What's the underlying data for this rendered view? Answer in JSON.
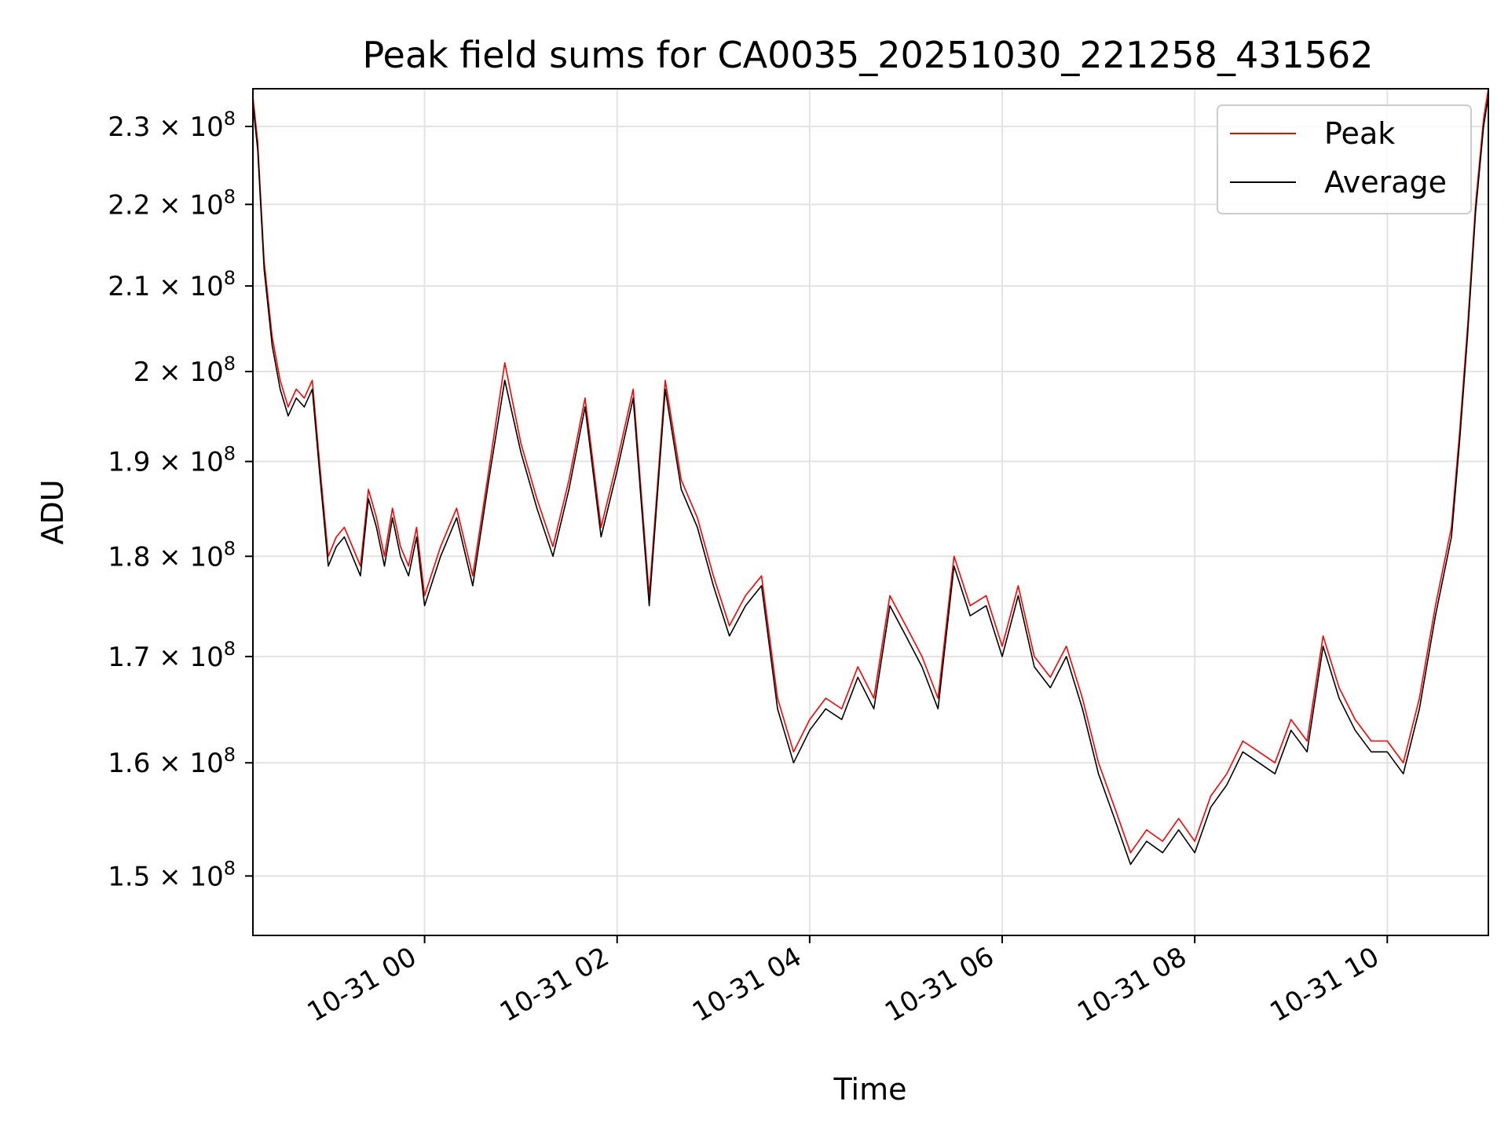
{
  "chart_data": {
    "type": "line",
    "title": "Peak field sums for CA0035_20251030_221258_431562",
    "xlabel": "Time",
    "ylabel": "ADU",
    "yscale": "log",
    "xlim": [
      "2025-10-30 22:13",
      "2025-10-31 11:03"
    ],
    "ylim": [
      145000000,
      235000000
    ],
    "grid": true,
    "legend_placement": "top-right",
    "x_ticks": [
      {
        "value": "2025-10-31 00:00",
        "label": "10-31 00"
      },
      {
        "value": "2025-10-31 02:00",
        "label": "10-31 02"
      },
      {
        "value": "2025-10-31 04:00",
        "label": "10-31 04"
      },
      {
        "value": "2025-10-31 06:00",
        "label": "10-31 06"
      },
      {
        "value": "2025-10-31 08:00",
        "label": "10-31 08"
      },
      {
        "value": "2025-10-31 10:00",
        "label": "10-31 10"
      }
    ],
    "y_ticks": [
      {
        "value": 150000000,
        "mantissa": "1.5",
        "exponent": "8"
      },
      {
        "value": 160000000,
        "mantissa": "1.6",
        "exponent": "8"
      },
      {
        "value": 170000000,
        "mantissa": "1.7",
        "exponent": "8"
      },
      {
        "value": 180000000,
        "mantissa": "1.8",
        "exponent": "8"
      },
      {
        "value": 190000000,
        "mantissa": "1.9",
        "exponent": "8"
      },
      {
        "value": 200000000,
        "mantissa": "2",
        "exponent": "8"
      },
      {
        "value": 210000000,
        "mantissa": "2.1",
        "exponent": "8"
      },
      {
        "value": 220000000,
        "mantissa": "2.2",
        "exponent": "8"
      },
      {
        "value": 230000000,
        "mantissa": "2.3",
        "exponent": "8"
      }
    ],
    "tick_times_symbol": "×",
    "tick_base": "10",
    "series": [
      {
        "name": "Peak",
        "color": "#ff0000"
      },
      {
        "name": "Average",
        "color": "#000000"
      }
    ],
    "x": [
      "2025-10-30 22:13",
      "2025-10-30 22:16",
      "2025-10-30 22:20",
      "2025-10-30 22:25",
      "2025-10-30 22:30",
      "2025-10-30 22:35",
      "2025-10-30 22:40",
      "2025-10-30 22:45",
      "2025-10-30 22:50",
      "2025-10-30 22:55",
      "2025-10-30 23:00",
      "2025-10-30 23:05",
      "2025-10-30 23:10",
      "2025-10-30 23:15",
      "2025-10-30 23:20",
      "2025-10-30 23:25",
      "2025-10-30 23:30",
      "2025-10-30 23:35",
      "2025-10-30 23:40",
      "2025-10-30 23:45",
      "2025-10-30 23:50",
      "2025-10-30 23:55",
      "2025-10-31 00:00",
      "2025-10-31 00:10",
      "2025-10-31 00:20",
      "2025-10-31 00:30",
      "2025-10-31 00:40",
      "2025-10-31 00:50",
      "2025-10-31 01:00",
      "2025-10-31 01:10",
      "2025-10-31 01:20",
      "2025-10-31 01:30",
      "2025-10-31 01:40",
      "2025-10-31 01:50",
      "2025-10-31 02:00",
      "2025-10-31 02:10",
      "2025-10-31 02:20",
      "2025-10-31 02:30",
      "2025-10-31 02:40",
      "2025-10-31 02:50",
      "2025-10-31 03:00",
      "2025-10-31 03:10",
      "2025-10-31 03:20",
      "2025-10-31 03:30",
      "2025-10-31 03:40",
      "2025-10-31 03:50",
      "2025-10-31 04:00",
      "2025-10-31 04:10",
      "2025-10-31 04:20",
      "2025-10-31 04:30",
      "2025-10-31 04:40",
      "2025-10-31 04:50",
      "2025-10-31 05:00",
      "2025-10-31 05:10",
      "2025-10-31 05:20",
      "2025-10-31 05:30",
      "2025-10-31 05:40",
      "2025-10-31 05:50",
      "2025-10-31 06:00",
      "2025-10-31 06:10",
      "2025-10-31 06:20",
      "2025-10-31 06:30",
      "2025-10-31 06:40",
      "2025-10-31 06:50",
      "2025-10-31 07:00",
      "2025-10-31 07:10",
      "2025-10-31 07:20",
      "2025-10-31 07:30",
      "2025-10-31 07:40",
      "2025-10-31 07:50",
      "2025-10-31 08:00",
      "2025-10-31 08:10",
      "2025-10-31 08:20",
      "2025-10-31 08:30",
      "2025-10-31 08:40",
      "2025-10-31 08:50",
      "2025-10-31 09:00",
      "2025-10-31 09:10",
      "2025-10-31 09:20",
      "2025-10-31 09:30",
      "2025-10-31 09:40",
      "2025-10-31 09:50",
      "2025-10-31 10:00",
      "2025-10-31 10:10",
      "2025-10-31 10:20",
      "2025-10-31 10:30",
      "2025-10-31 10:40",
      "2025-10-31 10:45",
      "2025-10-31 10:50",
      "2025-10-31 10:55",
      "2025-10-31 11:00",
      "2025-10-31 11:03"
    ],
    "peak": [
      234000000,
      228000000,
      213000000,
      204000000,
      199000000,
      196000000,
      198000000,
      197000000,
      199000000,
      189000000,
      180000000,
      182000000,
      183000000,
      181000000,
      179000000,
      187000000,
      184000000,
      180000000,
      185000000,
      181000000,
      179000000,
      183000000,
      176000000,
      181000000,
      185000000,
      178000000,
      189000000,
      201000000,
      192000000,
      186000000,
      181000000,
      188000000,
      197000000,
      183000000,
      190000000,
      198000000,
      176000000,
      199000000,
      188000000,
      184000000,
      178000000,
      173000000,
      176000000,
      178000000,
      166000000,
      161000000,
      164000000,
      166000000,
      165000000,
      169000000,
      166000000,
      176000000,
      173000000,
      170000000,
      166000000,
      180000000,
      175000000,
      176000000,
      171000000,
      177000000,
      170000000,
      168000000,
      171000000,
      166000000,
      160000000,
      156000000,
      152000000,
      154000000,
      153000000,
      155000000,
      153000000,
      157000000,
      159000000,
      162000000,
      161000000,
      160000000,
      164000000,
      162000000,
      172000000,
      167000000,
      164000000,
      162000000,
      162000000,
      160000000,
      166000000,
      175000000,
      183000000,
      193000000,
      205000000,
      220000000,
      231000000,
      235000000
    ],
    "average": [
      233000000,
      227000000,
      212000000,
      203000000,
      198000000,
      195000000,
      197000000,
      196000000,
      198000000,
      188000000,
      179000000,
      181000000,
      182000000,
      180000000,
      178000000,
      186000000,
      183000000,
      179000000,
      184000000,
      180000000,
      178000000,
      182000000,
      175000000,
      180000000,
      184000000,
      177000000,
      188000000,
      199000000,
      191000000,
      185000000,
      180000000,
      187000000,
      196000000,
      182000000,
      189000000,
      197000000,
      175000000,
      198000000,
      187000000,
      183000000,
      177000000,
      172000000,
      175000000,
      177000000,
      165000000,
      160000000,
      163000000,
      165000000,
      164000000,
      168000000,
      165000000,
      175000000,
      172000000,
      169000000,
      165000000,
      179000000,
      174000000,
      175000000,
      170000000,
      176000000,
      169000000,
      167000000,
      170000000,
      165000000,
      159000000,
      155000000,
      151000000,
      153000000,
      152000000,
      154000000,
      152000000,
      156000000,
      158000000,
      161000000,
      160000000,
      159000000,
      163000000,
      161000000,
      171000000,
      166000000,
      163000000,
      161000000,
      161000000,
      159000000,
      165000000,
      174000000,
      182000000,
      192000000,
      204000000,
      219000000,
      230000000,
      234000000
    ]
  }
}
